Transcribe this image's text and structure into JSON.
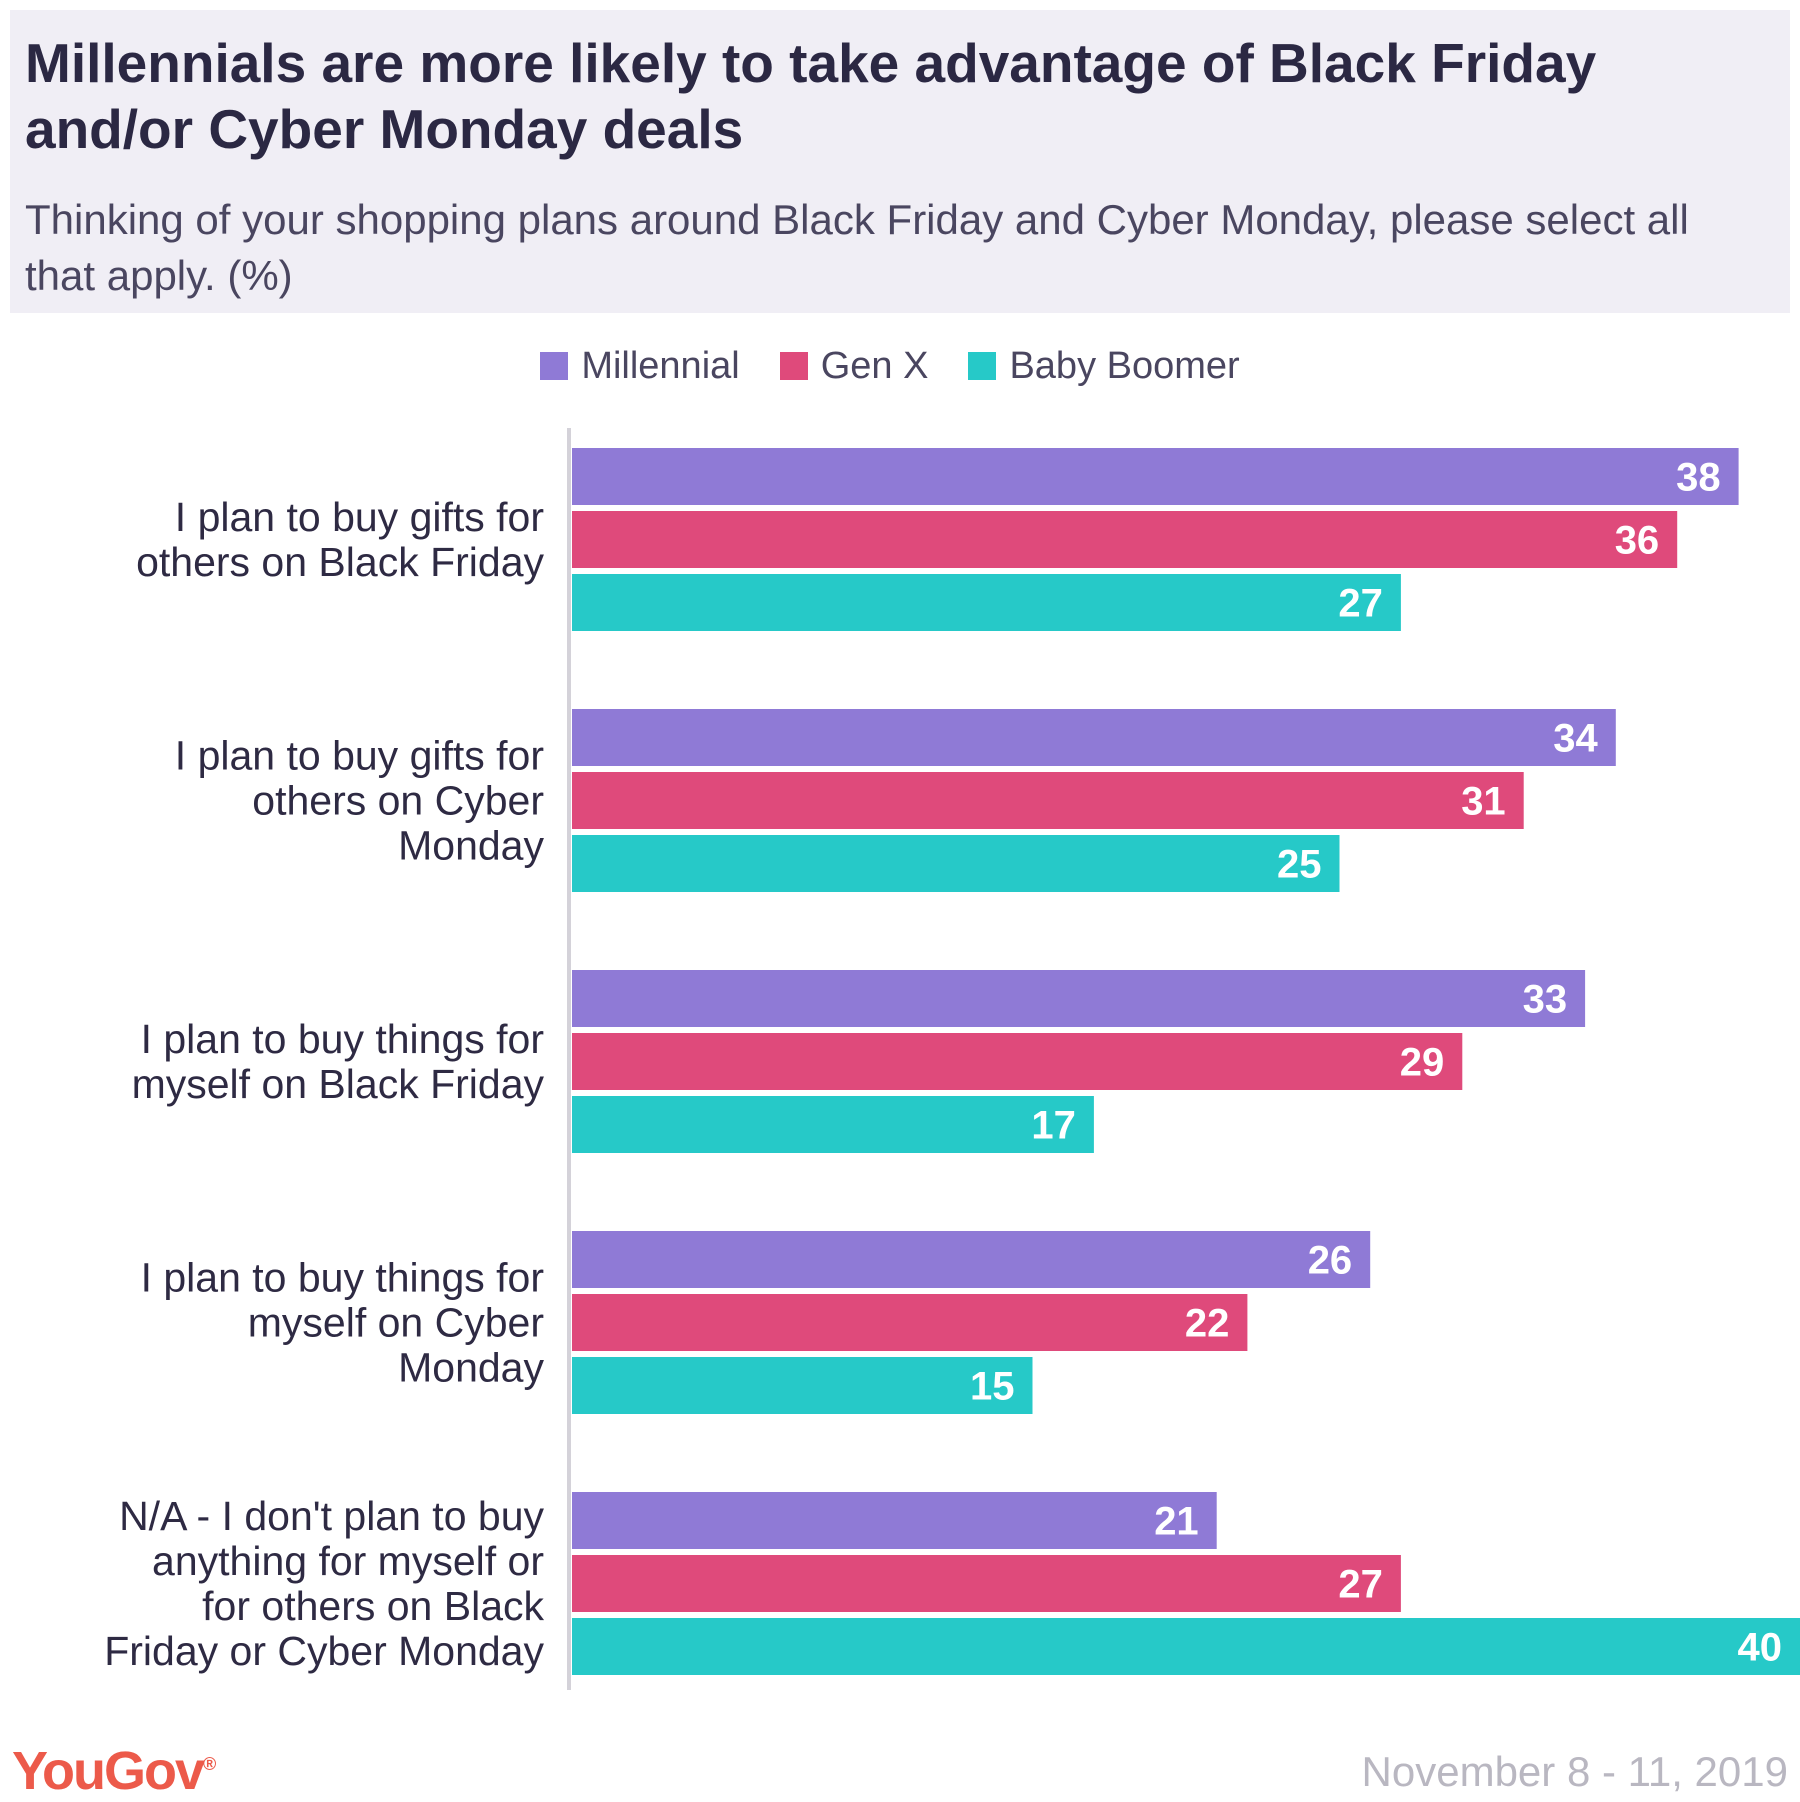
{
  "header": {
    "title": "Millennials are more likely to take advantage of Black Friday and/or Cyber Monday deals",
    "subtitle": "Thinking of your shopping plans around Black Friday and Cyber Monday, please select all that apply. (%)"
  },
  "footer": {
    "brand": "YouGov",
    "brand_mark": "®",
    "date": "November 8 - 11, 2019"
  },
  "colors": {
    "millennial": "#8f7ad6",
    "gen_x": "#df4a7b",
    "baby_boomer": "#26c9c8"
  },
  "chart_data": {
    "type": "bar",
    "orientation": "horizontal",
    "title": "Millennials are more likely to take advantage of Black Friday and/or Cyber Monday deals",
    "subtitle": "Thinking of your shopping plans around Black Friday and Cyber Monday, please select all that apply. (%)",
    "xlabel": "",
    "ylabel": "",
    "xlim": [
      0,
      40
    ],
    "grid": false,
    "legend": "top-center",
    "categories": [
      [
        "I plan to buy gifts for",
        "others on Black Friday"
      ],
      [
        "I plan to buy gifts for",
        "others on Cyber",
        "Monday"
      ],
      [
        "I plan to buy things for",
        "myself on Black Friday"
      ],
      [
        "I plan to buy things for",
        "myself on Cyber",
        "Monday"
      ],
      [
        "N/A - I don't plan to buy",
        "anything for myself or",
        "for others on Black",
        "Friday or Cyber Monday"
      ]
    ],
    "series": [
      {
        "name": "Millennial",
        "color": "#8f7ad6",
        "values": [
          38,
          34,
          33,
          26,
          21
        ]
      },
      {
        "name": "Gen X",
        "color": "#df4a7b",
        "values": [
          36,
          31,
          29,
          22,
          27
        ]
      },
      {
        "name": "Baby Boomer",
        "color": "#26c9c8",
        "values": [
          27,
          25,
          17,
          15,
          40
        ]
      }
    ]
  }
}
